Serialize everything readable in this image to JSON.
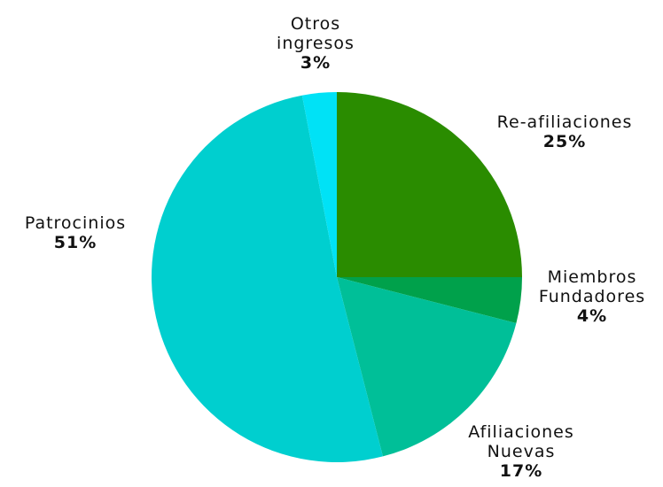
{
  "chart_data": {
    "type": "pie",
    "categories": [
      "Re-afiliaciones",
      "Miembros Fundadores",
      "Afiliaciones Nuevas",
      "Patrocinios",
      "Otros ingresos"
    ],
    "values": [
      25,
      4,
      17,
      51,
      3
    ],
    "value_labels": [
      "25%",
      "4%",
      "17%",
      "51%",
      "3%"
    ],
    "colors": [
      "#2a8c00",
      "#00a14b",
      "#00bf98",
      "#00cfcf",
      "#00e2f6"
    ]
  }
}
